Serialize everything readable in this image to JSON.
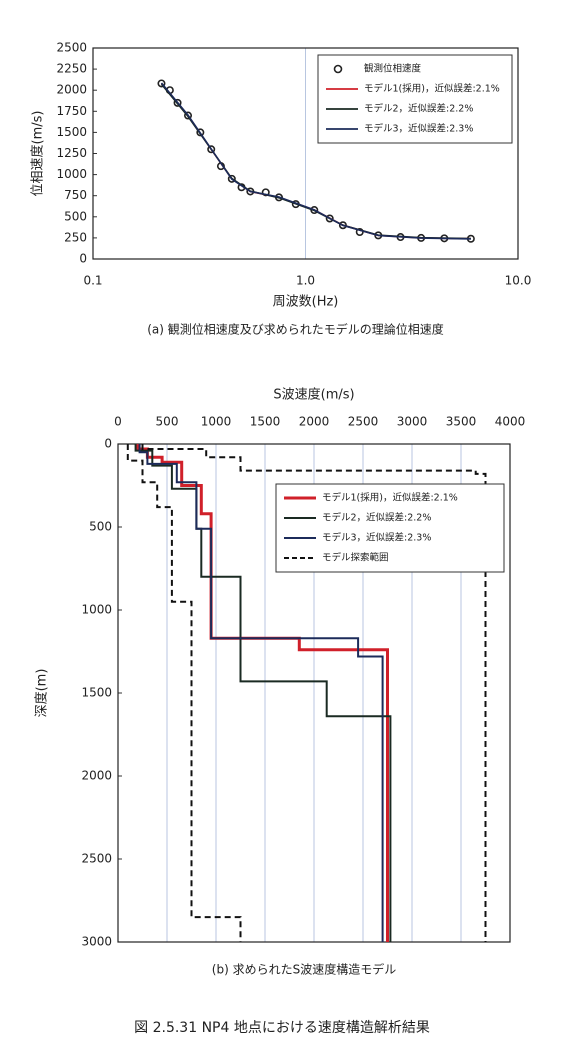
{
  "chart_data": [
    {
      "type": "line",
      "xscale": "log",
      "x_label": "周波数(Hz)",
      "y_label": "位相速度(m/s)",
      "caption": "(a)  観測位相速度及び求められたモデルの理論位相速度",
      "xlim": [
        0.1,
        10
      ],
      "xticks": [
        0.1,
        {
          "value": 1,
          "label": "1.0"
        },
        {
          "value": 10,
          "label": "10.0"
        }
      ],
      "ylim": [
        0,
        2500
      ],
      "yticks": [
        0,
        250,
        500,
        750,
        1000,
        1250,
        1500,
        1750,
        2000,
        2250,
        2500
      ],
      "grid": "x",
      "legend": "upper right",
      "series": [
        {
          "name": "観測位相速度",
          "color": "#222222",
          "marker": "circle",
          "x": [
            0.21,
            0.23,
            0.25,
            0.28,
            0.32,
            0.36,
            0.4,
            0.45,
            0.5,
            0.55,
            0.65,
            0.75,
            0.9,
            1.1,
            1.3,
            1.5,
            1.8,
            2.2,
            2.8,
            3.5,
            4.5,
            6
          ],
          "values": [
            2080,
            2000,
            1850,
            1700,
            1500,
            1300,
            1100,
            950,
            850,
            800,
            790,
            730,
            650,
            580,
            480,
            400,
            320,
            280,
            260,
            250,
            245,
            240
          ]
        },
        {
          "name": "モデル1(採用)，近似誤差:2.1%",
          "color": "#d0202a",
          "x": [
            0.21,
            0.28,
            0.36,
            0.45,
            0.55,
            0.75,
            1.1,
            1.5,
            2.2,
            3.5,
            6
          ],
          "values": [
            2080,
            1700,
            1300,
            950,
            800,
            730,
            580,
            400,
            280,
            250,
            240
          ]
        },
        {
          "name": "モデル2，近似誤差:2.2%",
          "color": "#1a2a22",
          "x": [
            0.21,
            0.28,
            0.36,
            0.45,
            0.55,
            0.75,
            1.1,
            1.5,
            2.2,
            3.5,
            6
          ],
          "values": [
            2070,
            1690,
            1300,
            955,
            805,
            725,
            575,
            400,
            282,
            252,
            242
          ]
        },
        {
          "name": "モデル3，近似誤差:2.3%",
          "color": "#1c2b5a",
          "x": [
            0.21,
            0.28,
            0.36,
            0.45,
            0.55,
            0.75,
            1.1,
            1.5,
            2.2,
            3.5,
            6
          ],
          "values": [
            2085,
            1705,
            1305,
            945,
            800,
            735,
            582,
            398,
            278,
            248,
            238
          ]
        }
      ]
    },
    {
      "type": "line",
      "xaxis_position": "top",
      "x_label": "S波速度(m/s)",
      "y_label": "深度(m)",
      "caption": "(b)  求められたS波速度構造モデル",
      "xlim": [
        0,
        4000
      ],
      "xticks": [
        0,
        500,
        1000,
        1500,
        2000,
        2500,
        3000,
        3500,
        4000
      ],
      "ylim": [
        3000,
        0
      ],
      "yticks": [
        0,
        500,
        1000,
        1500,
        2000,
        2500,
        3000
      ],
      "grid": "x",
      "legend": "upper right",
      "series": [
        {
          "name": "モデル1(採用)，近似誤差:2.1%",
          "color": "#d0202a",
          "width": 3,
          "x": [
            200,
            200,
            300,
            300,
            450,
            450,
            650,
            650,
            850,
            850,
            950,
            950,
            1850,
            1850,
            2750,
            2750
          ],
          "values": [
            0,
            30,
            30,
            80,
            80,
            110,
            110,
            250,
            250,
            420,
            420,
            1170,
            1170,
            1240,
            1240,
            3000
          ]
        },
        {
          "name": "モデル2，近似誤差:2.2%",
          "color": "#1a2a22",
          "width": 2,
          "x": [
            180,
            180,
            350,
            350,
            550,
            550,
            800,
            800,
            850,
            850,
            1250,
            1250,
            2130,
            2130,
            2780,
            2780
          ],
          "values": [
            0,
            40,
            40,
            130,
            130,
            270,
            270,
            510,
            510,
            800,
            800,
            1430,
            1430,
            1640,
            1640,
            3000
          ]
        },
        {
          "name": "モデル3，近似誤差:2.3%",
          "color": "#1c2b5a",
          "width": 2,
          "x": [
            220,
            220,
            300,
            300,
            600,
            600,
            800,
            800,
            950,
            950,
            2450,
            2450,
            2700,
            2700
          ],
          "values": [
            0,
            50,
            50,
            120,
            120,
            230,
            230,
            510,
            510,
            1170,
            1170,
            1280,
            1280,
            3000
          ]
        },
        {
          "name": "モデル探索範囲",
          "color": "#111111",
          "width": 2,
          "dash": true,
          "x": [
            100,
            100,
            250,
            250,
            400,
            400,
            550,
            550,
            750,
            750,
            1250,
            1250,
            null,
            250,
            250,
            900,
            900,
            1250,
            1250,
            3650,
            3650,
            3750,
            3750
          ],
          "values": [
            0,
            100,
            100,
            230,
            230,
            380,
            380,
            950,
            950,
            2850,
            2850,
            3000,
            null,
            0,
            30,
            30,
            80,
            80,
            160,
            160,
            180,
            180,
            3000
          ]
        }
      ]
    }
  ],
  "figure_caption": "図 2.5.31  NP4 地点における速度構造解析結果"
}
